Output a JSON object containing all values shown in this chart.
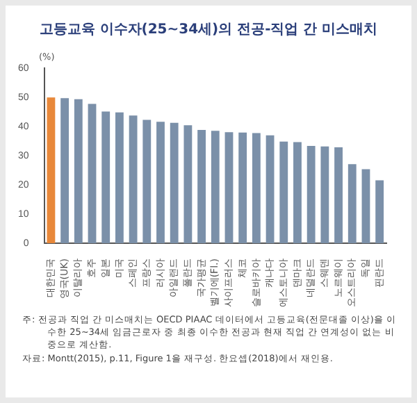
{
  "chart_data": {
    "type": "bar",
    "title": "고등교육 이수자(25~34세)의 전공-직업 간 미스매치",
    "ylabel": "(%)",
    "categories": [
      "대한민국",
      "영국(UK)",
      "이탈리아",
      "호주",
      "일본",
      "미국",
      "스페인",
      "프랑스",
      "러시아",
      "아일랜드",
      "폴란드",
      "국가평균",
      "벨기에(Fl.)",
      "사이프러스",
      "체코",
      "슬로바키아",
      "캐나다",
      "에스토니아",
      "덴마크",
      "네덜란드",
      "스웨덴",
      "노르웨이",
      "오스트리아",
      "독일",
      "핀란드"
    ],
    "values": [
      50,
      49.8,
      49.4,
      47.8,
      45.2,
      44.9,
      43.8,
      42.3,
      41.7,
      41.3,
      40.5,
      38.9,
      38.6,
      38.1,
      38.0,
      37.8,
      37.0,
      34.9,
      34.7,
      33.4,
      33.2,
      32.9,
      27.1,
      25.4,
      21.6
    ],
    "colors": [
      "#e8883a",
      "#7b90a9",
      "#7b90a9",
      "#7b90a9",
      "#7b90a9",
      "#7b90a9",
      "#7b90a9",
      "#7b90a9",
      "#7b90a9",
      "#7b90a9",
      "#7b90a9",
      "#7b90a9",
      "#7b90a9",
      "#7b90a9",
      "#7b90a9",
      "#7b90a9",
      "#7b90a9",
      "#7b90a9",
      "#7b90a9",
      "#7b90a9",
      "#7b90a9",
      "#7b90a9",
      "#7b90a9",
      "#7b90a9",
      "#7b90a9"
    ],
    "ylim": [
      0,
      60
    ],
    "yticks": [
      0,
      10,
      20,
      30,
      40,
      50,
      60
    ],
    "grid": false,
    "legend": false,
    "annotations": [
      "주: 전공과 직업 간 미스매치는 OECD PIAAC 데이터에서 고등교육(전문대졸 이상)을 이수한 25~34세 임금근로자 중 최종 이수한 전공과 현재 직업 간 연계성이 없는 비중으로 계산함.",
      "자료: Montt(2015), p.11, Figure 1을 재구성. 한요셉(2018)에서 재인용."
    ]
  }
}
